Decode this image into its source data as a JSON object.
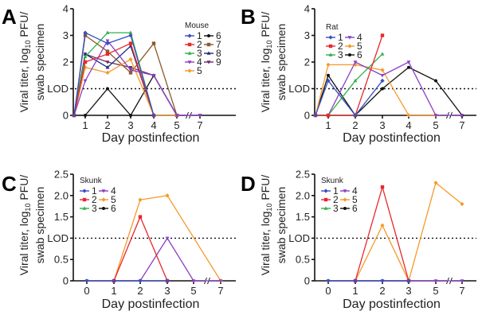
{
  "chart_data": [
    {
      "panel": "A",
      "type": "line",
      "title": "",
      "xlabel": "Day postinfection",
      "ylabel": "Viral titer, log10 PFU/ swab specimen",
      "ylabel_line1": "Viral titer, log",
      "ylabel_sub": "10",
      "ylabel_line1_end": " PFU/",
      "ylabel_line2": "swab specimen",
      "x_ticks": [
        "1",
        "2",
        "3",
        "4",
        "5",
        "7"
      ],
      "x_tick_days": [
        1,
        2,
        3,
        4,
        5,
        7
      ],
      "y_ticks": [
        {
          "value": 0,
          "label": "0"
        },
        {
          "value": 1,
          "label": "LOD"
        },
        {
          "value": 2,
          "label": "2"
        },
        {
          "value": 3,
          "label": "3"
        },
        {
          "value": 4,
          "label": "4"
        }
      ],
      "ylim": [
        0,
        4
      ],
      "lod": 1,
      "axis_break": "between 5 and 7",
      "legend_title": "Mouse",
      "legend_position": "top-right",
      "legend_columns": 2,
      "series": [
        {
          "name": "1",
          "color": "#3a4fbf",
          "marker": "diamond",
          "x": [
            0,
            1,
            2,
            3,
            4
          ],
          "y": [
            0,
            3.1,
            2.7,
            3.0,
            0
          ]
        },
        {
          "name": "2",
          "color": "#e8282e",
          "marker": "square",
          "x": [
            0,
            1,
            2,
            3,
            4
          ],
          "y": [
            0,
            2.0,
            2.3,
            2.7,
            0
          ]
        },
        {
          "name": "3",
          "color": "#2fb14a",
          "marker": "triangle-up",
          "x": [
            0,
            1,
            2,
            3,
            4
          ],
          "y": [
            0,
            2.2,
            3.1,
            3.1,
            0
          ]
        },
        {
          "name": "4",
          "color": "#8a3fc4",
          "marker": "triangle-down",
          "x": [
            0,
            1,
            2,
            3,
            4,
            5,
            7
          ],
          "y": [
            0,
            1.3,
            2.8,
            1.7,
            1.5,
            0,
            0
          ]
        },
        {
          "name": "5",
          "color": "#f59a2a",
          "marker": "diamond",
          "x": [
            0,
            1,
            2,
            3,
            4,
            5
          ],
          "y": [
            0,
            1.8,
            1.6,
            2.1,
            0,
            0
          ]
        },
        {
          "name": "6",
          "color": "#111111",
          "marker": "circle",
          "x": [
            0,
            1,
            2,
            3,
            4,
            5
          ],
          "y": [
            0,
            0,
            1.0,
            0,
            1.5,
            0
          ]
        },
        {
          "name": "7",
          "color": "#8b5a2b",
          "marker": "square",
          "x": [
            0,
            1,
            2,
            3,
            4,
            5
          ],
          "y": [
            0,
            3.0,
            2.4,
            1.6,
            2.7,
            0
          ]
        },
        {
          "name": "8",
          "color": "#1f2a7a",
          "marker": "triangle-up",
          "x": [
            0,
            1,
            2,
            3,
            4
          ],
          "y": [
            0,
            2.3,
            1.8,
            2.6,
            0
          ]
        },
        {
          "name": "9",
          "color": "#6b2a6b",
          "marker": "triangle-down",
          "x": [
            0,
            1,
            2,
            3,
            4,
            5,
            7
          ],
          "y": [
            0,
            2.3,
            2.0,
            1.8,
            1.5,
            0,
            0
          ]
        }
      ]
    },
    {
      "panel": "B",
      "type": "line",
      "title": "",
      "xlabel": "Day postinfection",
      "ylabel": "Viral titer, log10 PFU/ swab specimen",
      "ylabel_line1": "Viral titer, log",
      "ylabel_sub": "10",
      "ylabel_line1_end": " PFU/",
      "ylabel_line2": "swab specimen",
      "x_ticks": [
        "1",
        "2",
        "3",
        "4",
        "5",
        "7"
      ],
      "x_tick_days": [
        1,
        2,
        3,
        4,
        5,
        7
      ],
      "y_ticks": [
        {
          "value": 0,
          "label": "0"
        },
        {
          "value": 1,
          "label": "LOD"
        },
        {
          "value": 2,
          "label": "2"
        },
        {
          "value": 3,
          "label": "3"
        },
        {
          "value": 4,
          "label": "4"
        }
      ],
      "ylim": [
        0,
        4
      ],
      "lod": 1,
      "axis_break": "between 5 and 7",
      "legend_title": "Rat",
      "legend_position": "top-left",
      "legend_columns": 2,
      "series": [
        {
          "name": "1",
          "color": "#3a4fbf",
          "marker": "diamond",
          "x": [
            0,
            1,
            2,
            3
          ],
          "y": [
            0,
            1.3,
            0,
            1.3
          ]
        },
        {
          "name": "2",
          "color": "#e8282e",
          "marker": "square",
          "x": [
            0,
            1,
            2,
            3
          ],
          "y": [
            0,
            0,
            0,
            3.0
          ]
        },
        {
          "name": "3",
          "color": "#2fb14a",
          "marker": "triangle-up",
          "x": [
            0,
            1,
            2,
            3
          ],
          "y": [
            0,
            0,
            1.3,
            2.3
          ]
        },
        {
          "name": "4",
          "color": "#8a3fc4",
          "marker": "triangle-down",
          "x": [
            0,
            1,
            2,
            3,
            4,
            5,
            7
          ],
          "y": [
            0,
            0,
            2.0,
            1.5,
            2.0,
            0,
            0
          ]
        },
        {
          "name": "5",
          "color": "#f59a2a",
          "marker": "diamond",
          "x": [
            0,
            1,
            2,
            3,
            4,
            5
          ],
          "y": [
            0,
            1.9,
            1.9,
            1.7,
            0,
            0
          ]
        },
        {
          "name": "6",
          "color": "#111111",
          "marker": "circle",
          "x": [
            0,
            1,
            2,
            3,
            4,
            5,
            7
          ],
          "y": [
            0,
            1.5,
            0,
            1.0,
            1.8,
            1.3,
            0
          ]
        }
      ]
    },
    {
      "panel": "C",
      "type": "line",
      "title": "",
      "xlabel": "Day postinfection",
      "ylabel": "Viral titer, log10 PFU/ swab specimen",
      "ylabel_line1": "Viral titer, log",
      "ylabel_sub": "10",
      "ylabel_line1_end": " PFU/",
      "ylabel_line2": "swab specimen",
      "x_ticks": [
        "0",
        "1",
        "2",
        "3",
        "5",
        "7"
      ],
      "x_tick_days": [
        0,
        1,
        2,
        3,
        5,
        7
      ],
      "y_ticks": [
        {
          "value": 0,
          "label": "0"
        },
        {
          "value": 0.5,
          "label": "0.5"
        },
        {
          "value": 1,
          "label": "LOD"
        },
        {
          "value": 1.5,
          "label": "1.5"
        },
        {
          "value": 2,
          "label": "2.0"
        },
        {
          "value": 2.5,
          "label": "2.5"
        }
      ],
      "ylim": [
        0,
        2.5
      ],
      "lod": 1,
      "axis_break": "between 5 and 7",
      "legend_title": "Skunk",
      "legend_position": "top-left",
      "legend_columns": 2,
      "series": [
        {
          "name": "1",
          "color": "#3a4fbf",
          "marker": "diamond",
          "x": [
            0,
            1,
            2,
            3
          ],
          "y": [
            0,
            0,
            0,
            0
          ]
        },
        {
          "name": "2",
          "color": "#e8282e",
          "marker": "square",
          "x": [
            1,
            2,
            3
          ],
          "y": [
            0,
            1.5,
            0
          ]
        },
        {
          "name": "3",
          "color": "#2fb14a",
          "marker": "triangle-up",
          "x": [],
          "y": []
        },
        {
          "name": "4",
          "color": "#8a3fc4",
          "marker": "triangle-down",
          "x": [
            0,
            1,
            2,
            3,
            5,
            7
          ],
          "y": [
            0,
            0,
            0,
            1.0,
            0,
            0
          ]
        },
        {
          "name": "5",
          "color": "#f59a2a",
          "marker": "diamond",
          "x": [
            1,
            2,
            3,
            7
          ],
          "y": [
            0,
            1.9,
            2.0,
            0
          ]
        },
        {
          "name": "6",
          "color": "#111111",
          "marker": "circle",
          "x": [],
          "y": []
        }
      ]
    },
    {
      "panel": "D",
      "type": "line",
      "title": "",
      "xlabel": "Day postinfection",
      "ylabel": "Viral titer, log10 PFU/ swab specimen",
      "ylabel_line1": "Viral titer, log",
      "ylabel_sub": "10",
      "ylabel_line1_end": " PFU/",
      "ylabel_line2": "swab specimen",
      "x_ticks": [
        "0",
        "1",
        "2",
        "3",
        "5",
        "7"
      ],
      "x_tick_days": [
        0,
        1,
        2,
        3,
        5,
        7
      ],
      "y_ticks": [
        {
          "value": 0,
          "label": "0"
        },
        {
          "value": 0.5,
          "label": "0.5"
        },
        {
          "value": 1,
          "label": "LOD"
        },
        {
          "value": 1.5,
          "label": "1.5"
        },
        {
          "value": 2,
          "label": "2.0"
        },
        {
          "value": 2.5,
          "label": "2.5"
        }
      ],
      "ylim": [
        0,
        2.5
      ],
      "lod": 1,
      "axis_break": "between 5 and 7",
      "legend_title": "Skunk",
      "legend_position": "top-left",
      "legend_columns": 2,
      "series": [
        {
          "name": "1",
          "color": "#3a4fbf",
          "marker": "diamond",
          "x": [
            0,
            1,
            2,
            3
          ],
          "y": [
            0,
            0,
            0,
            0
          ]
        },
        {
          "name": "2",
          "color": "#e8282e",
          "marker": "square",
          "x": [
            1,
            2,
            3
          ],
          "y": [
            0,
            2.2,
            0
          ]
        },
        {
          "name": "3",
          "color": "#2fb14a",
          "marker": "triangle-up",
          "x": [],
          "y": []
        },
        {
          "name": "4",
          "color": "#8a3fc4",
          "marker": "triangle-down",
          "x": [
            0,
            1,
            2,
            3,
            5,
            7
          ],
          "y": [
            0,
            0,
            0,
            0,
            0,
            0
          ]
        },
        {
          "name": "5",
          "color": "#f59a2a",
          "marker": "diamond",
          "x": [
            1,
            2,
            3,
            5,
            7
          ],
          "y": [
            0,
            1.3,
            0,
            2.3,
            1.8
          ]
        },
        {
          "name": "6",
          "color": "#111111",
          "marker": "circle",
          "x": [],
          "y": []
        }
      ]
    }
  ]
}
